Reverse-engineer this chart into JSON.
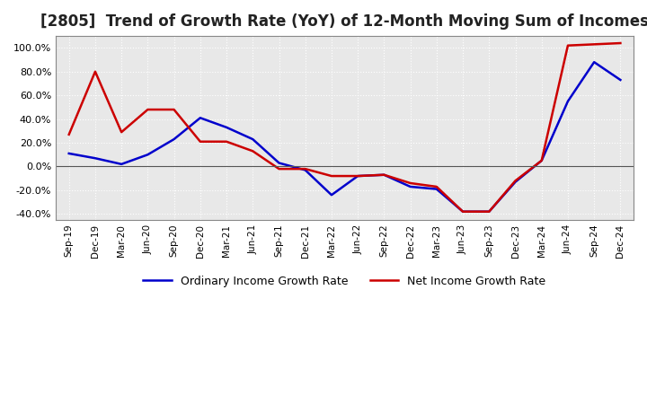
{
  "title": "[2805]  Trend of Growth Rate (YoY) of 12-Month Moving Sum of Incomes",
  "title_fontsize": 12,
  "ylim": [
    -0.45,
    1.1
  ],
  "yticks": [
    -0.4,
    -0.2,
    0.0,
    0.2,
    0.4,
    0.6,
    0.8,
    1.0
  ],
  "background_color": "#ffffff",
  "plot_bg_color": "#e8e8e8",
  "grid_color": "#ffffff",
  "ordinary_color": "#0000cc",
  "net_color": "#cc0000",
  "legend_ordinary": "Ordinary Income Growth Rate",
  "legend_net": "Net Income Growth Rate",
  "x_labels": [
    "Sep-19",
    "Dec-19",
    "Mar-20",
    "Jun-20",
    "Sep-20",
    "Dec-20",
    "Mar-21",
    "Jun-21",
    "Sep-21",
    "Dec-21",
    "Mar-22",
    "Jun-22",
    "Sep-22",
    "Dec-22",
    "Mar-23",
    "Jun-23",
    "Sep-23",
    "Dec-23",
    "Mar-24",
    "Jun-24",
    "Sep-24",
    "Dec-24"
  ],
  "ordinary": [
    0.11,
    0.07,
    0.02,
    0.1,
    0.23,
    0.41,
    0.33,
    0.23,
    0.03,
    -0.03,
    -0.24,
    -0.08,
    -0.07,
    -0.17,
    -0.19,
    -0.38,
    -0.38,
    -0.13,
    0.05,
    0.55,
    0.88,
    0.73
  ],
  "net": [
    0.27,
    0.8,
    0.29,
    0.48,
    0.48,
    0.21,
    0.21,
    0.13,
    -0.02,
    -0.02,
    -0.08,
    -0.08,
    -0.07,
    -0.14,
    -0.17,
    -0.38,
    -0.38,
    -0.12,
    0.05,
    1.02,
    1.03,
    1.04
  ]
}
